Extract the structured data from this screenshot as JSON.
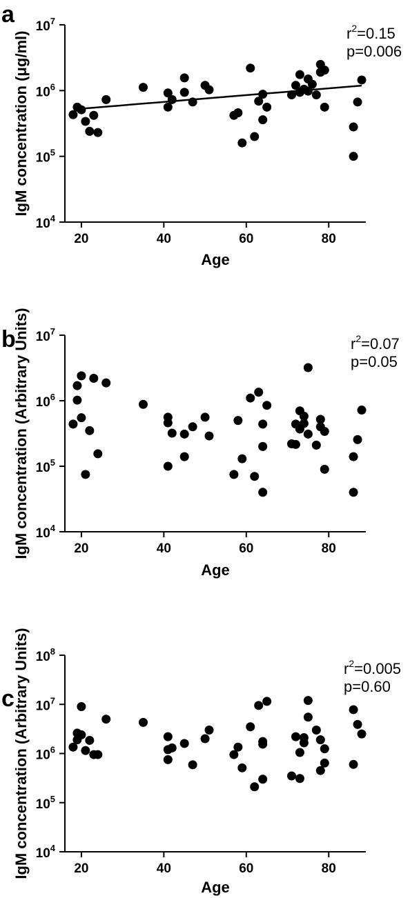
{
  "chart_data": [
    {
      "panel": "a",
      "type": "scatter",
      "xlabel": "Age",
      "ylabel": "IgM concentration (μg/ml)",
      "xlim": [
        16,
        89
      ],
      "ylim": [
        10000,
        10000000
      ],
      "y_scale": "log",
      "xticks": [
        "20",
        "40",
        "60",
        "80"
      ],
      "yticks": [
        {
          "base": "10",
          "exp": "4"
        },
        {
          "base": "10",
          "exp": "5"
        },
        {
          "base": "10",
          "exp": "6"
        },
        {
          "base": "10",
          "exp": "7"
        }
      ],
      "stats": {
        "r2_prefix": "r",
        "r2_sup": "2",
        "r2_value": "=0.15",
        "p": "p=0.006"
      },
      "trend_line": {
        "x": [
          20,
          88
        ],
        "y": [
          530000,
          1190000
        ]
      },
      "points": [
        [
          18,
          430000
        ],
        [
          19,
          560000
        ],
        [
          20,
          510000
        ],
        [
          21,
          340000
        ],
        [
          22,
          240000
        ],
        [
          23,
          420000
        ],
        [
          24,
          230000
        ],
        [
          26,
          730000
        ],
        [
          35,
          1120000
        ],
        [
          41,
          560000
        ],
        [
          41,
          920000
        ],
        [
          42,
          730000
        ],
        [
          45,
          1560000
        ],
        [
          45,
          940000
        ],
        [
          47,
          670000
        ],
        [
          50,
          1200000
        ],
        [
          51,
          1030000
        ],
        [
          57,
          420000
        ],
        [
          58,
          460000
        ],
        [
          59,
          160000
        ],
        [
          61,
          2200000
        ],
        [
          62,
          200000
        ],
        [
          63,
          690000
        ],
        [
          64,
          360000
        ],
        [
          64,
          880000
        ],
        [
          65,
          560000
        ],
        [
          71,
          860000
        ],
        [
          72,
          1200000
        ],
        [
          73,
          940000
        ],
        [
          73,
          1750000
        ],
        [
          74,
          1050000
        ],
        [
          75,
          1500000
        ],
        [
          75,
          980000
        ],
        [
          76,
          1250000
        ],
        [
          77,
          860000
        ],
        [
          78,
          2500000
        ],
        [
          78,
          1900000
        ],
        [
          79,
          2050000
        ],
        [
          79,
          560000
        ],
        [
          86,
          280000
        ],
        [
          86,
          100000
        ],
        [
          87,
          670000
        ],
        [
          88,
          1450000
        ]
      ]
    },
    {
      "panel": "b",
      "type": "scatter",
      "xlabel": "Age",
      "ylabel": "IgM concentration (Arbitrary  Units)",
      "xlim": [
        16,
        89
      ],
      "ylim": [
        10000,
        10000000
      ],
      "y_scale": "log",
      "xticks": [
        "20",
        "40",
        "60",
        "80"
      ],
      "yticks": [
        {
          "base": "10",
          "exp": "4"
        },
        {
          "base": "10",
          "exp": "5"
        },
        {
          "base": "10",
          "exp": "6"
        },
        {
          "base": "10",
          "exp": "7"
        }
      ],
      "stats": {
        "r2_prefix": "r",
        "r2_sup": "2",
        "r2_value": "=0.07",
        "p": "p=0.05"
      },
      "points": [
        [
          18,
          440000
        ],
        [
          19,
          1700000
        ],
        [
          19,
          1020000
        ],
        [
          20,
          2400000
        ],
        [
          20,
          550000
        ],
        [
          21,
          75000
        ],
        [
          22,
          350000
        ],
        [
          23,
          2200000
        ],
        [
          24,
          155000
        ],
        [
          26,
          1870000
        ],
        [
          35,
          880000
        ],
        [
          41,
          560000
        ],
        [
          41,
          460000
        ],
        [
          41,
          100000
        ],
        [
          42,
          320000
        ],
        [
          45,
          310000
        ],
        [
          45,
          140000
        ],
        [
          47,
          400000
        ],
        [
          50,
          560000
        ],
        [
          51,
          290000
        ],
        [
          57,
          75000
        ],
        [
          58,
          500000
        ],
        [
          59,
          130000
        ],
        [
          61,
          1100000
        ],
        [
          62,
          70000
        ],
        [
          63,
          1350000
        ],
        [
          64,
          440000
        ],
        [
          64,
          200000
        ],
        [
          64,
          40000
        ],
        [
          65,
          850000
        ],
        [
          71,
          220000
        ],
        [
          72,
          440000
        ],
        [
          72,
          215000
        ],
        [
          73,
          700000
        ],
        [
          73,
          370000
        ],
        [
          74,
          580000
        ],
        [
          74,
          450000
        ],
        [
          75,
          3200000
        ],
        [
          75,
          310000
        ],
        [
          77,
          210000
        ],
        [
          78,
          520000
        ],
        [
          78,
          400000
        ],
        [
          79,
          340000
        ],
        [
          79,
          90000
        ],
        [
          86,
          140000
        ],
        [
          86,
          40000
        ],
        [
          87,
          255000
        ],
        [
          88,
          720000
        ]
      ]
    },
    {
      "panel": "c",
      "type": "scatter",
      "xlabel": "Age",
      "ylabel": "IgM concentration (Arbitrary Units)",
      "xlim": [
        16,
        89
      ],
      "ylim": [
        10000,
        100000000
      ],
      "y_scale": "log",
      "xticks": [
        "20",
        "40",
        "60",
        "80"
      ],
      "yticks": [
        {
          "base": "10",
          "exp": "4"
        },
        {
          "base": "10",
          "exp": "5"
        },
        {
          "base": "10",
          "exp": "6"
        },
        {
          "base": "10",
          "exp": "7"
        },
        {
          "base": "10",
          "exp": "8"
        }
      ],
      "stats": {
        "r2_prefix": "r",
        "r2_sup": "2",
        "r2_value": "=0.005",
        "p": "p=0.60"
      },
      "points": [
        [
          18,
          1350000
        ],
        [
          19,
          2600000
        ],
        [
          19,
          1900000
        ],
        [
          20,
          9000000
        ],
        [
          20,
          2400000
        ],
        [
          21,
          1150000
        ],
        [
          22,
          1850000
        ],
        [
          23,
          950000
        ],
        [
          24,
          950000
        ],
        [
          26,
          5000000
        ],
        [
          35,
          4300000
        ],
        [
          41,
          2200000
        ],
        [
          41,
          1200000
        ],
        [
          41,
          750000
        ],
        [
          42,
          1300000
        ],
        [
          45,
          1600000
        ],
        [
          47,
          590000
        ],
        [
          50,
          2000000
        ],
        [
          51,
          3000000
        ],
        [
          57,
          950000
        ],
        [
          58,
          1350000
        ],
        [
          59,
          510000
        ],
        [
          61,
          3500000
        ],
        [
          62,
          210000
        ],
        [
          63,
          9500000
        ],
        [
          64,
          1750000
        ],
        [
          64,
          1550000
        ],
        [
          64,
          300000
        ],
        [
          65,
          11500000
        ],
        [
          71,
          350000
        ],
        [
          72,
          2200000
        ],
        [
          73,
          1050000
        ],
        [
          73,
          310000
        ],
        [
          74,
          2100000
        ],
        [
          74,
          1650000
        ],
        [
          75,
          12000000
        ],
        [
          75,
          5500000
        ],
        [
          77,
          3000000
        ],
        [
          78,
          1900000
        ],
        [
          78,
          450000
        ],
        [
          79,
          1250000
        ],
        [
          79,
          640000
        ],
        [
          86,
          7800000
        ],
        [
          86,
          600000
        ],
        [
          87,
          3900000
        ],
        [
          88,
          2500000
        ]
      ]
    }
  ]
}
